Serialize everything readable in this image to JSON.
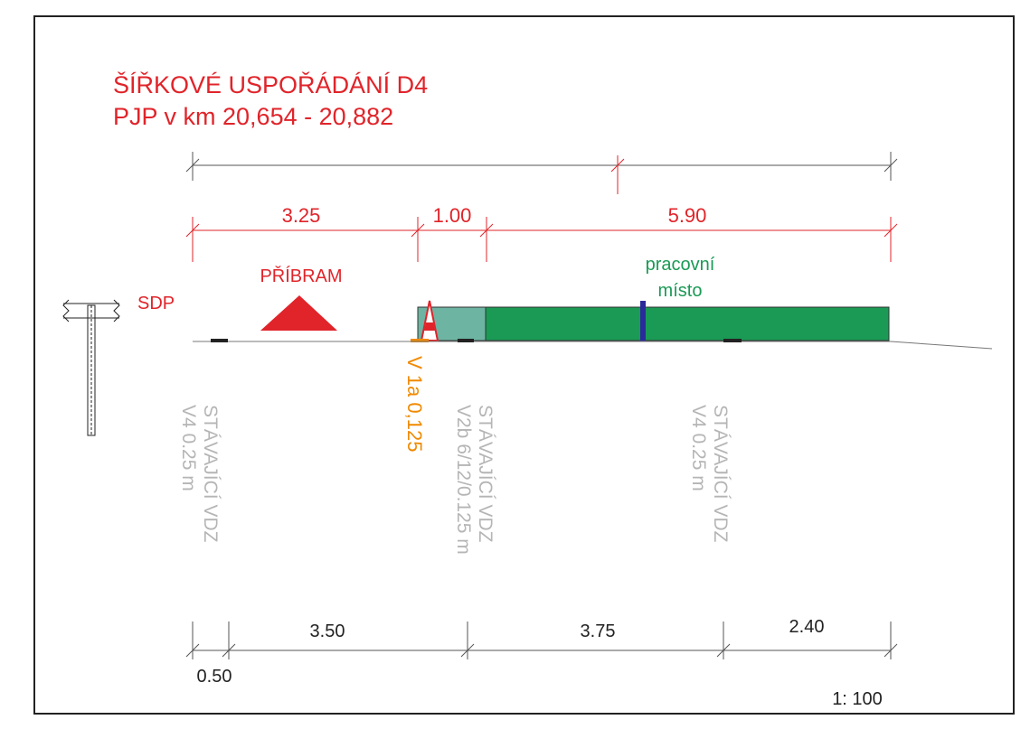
{
  "title": {
    "line1": "ŠÍŘKOVÉ USPOŘÁDÁNÍ D4",
    "line2": "PJP v km 20,654 - 20,882"
  },
  "top_dimensions": [
    "3.25",
    "1.00",
    "5.90"
  ],
  "labels": {
    "sdp": "SDP",
    "pribram": "PŘÍBRAM",
    "work_zone": [
      "pracovní",
      "místo"
    ],
    "cone_marking": "V 1a 0,125"
  },
  "markings": [
    {
      "line1": "STÁVAJÍCÍ VDZ",
      "line2": "V4 0.25 m"
    },
    {
      "line1": "STÁVAJÍCÍ VDZ",
      "line2": "V2b 6/12/0.125 m"
    },
    {
      "line1": "STÁVAJÍCÍ VDZ",
      "line2": "V4 0.25 m"
    }
  ],
  "bottom_dimensions": [
    "0.50",
    "3.50",
    "3.75",
    "2.40"
  ],
  "scale": "1: 100"
}
